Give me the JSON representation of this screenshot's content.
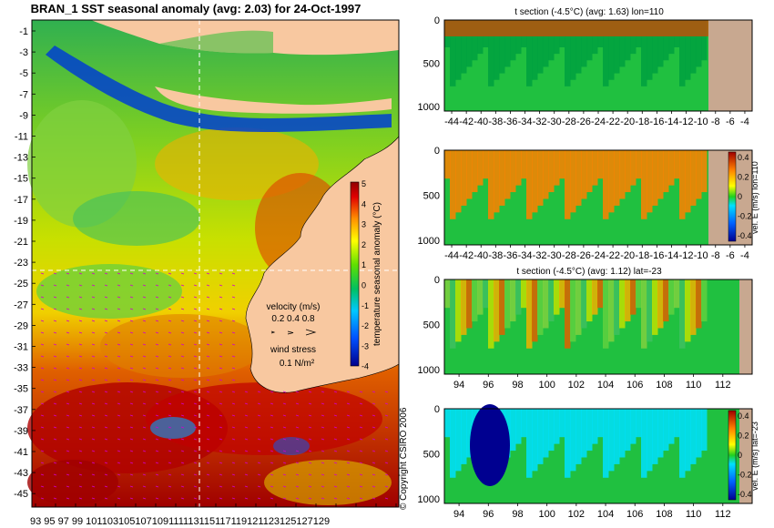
{
  "main_map": {
    "title": "BRAN_1  SST seasonal anomaly  (avg: 2.03) for 24-Oct-1997",
    "lat_ticks": [
      -1,
      -3,
      -5,
      -7,
      -9,
      -11,
      -13,
      -15,
      -17,
      -19,
      -21,
      -23,
      -25,
      -27,
      -29,
      -31,
      -33,
      -35,
      -37,
      -39,
      -41,
      -43,
      -45
    ],
    "lon_ticks": [
      93,
      95,
      97,
      99,
      101,
      103,
      105,
      107,
      109,
      111,
      113,
      115,
      117,
      119,
      121,
      123,
      125,
      127,
      129
    ],
    "lon_tick_labels": "93  95  97  99 101103105107109111113115117119121123125127129",
    "colorbar_label": "temperature seasonal anomaly (°C)",
    "colorbar_ticks": [
      5,
      4,
      3,
      2,
      1,
      0,
      -1,
      -2,
      -3,
      -4
    ],
    "velocity_label": "velocity (m/s)",
    "velocity_scale": "0.2 0.4 0.8",
    "wind_label": "wind stress",
    "wind_scale": "0.1 N/m²",
    "copyright": "© Copyright CSIRO 2006"
  },
  "panels": [
    {
      "id": "p1",
      "title": "t section (-4.5°C) (avg: 1.63) lon=110",
      "y_ticks": [
        0,
        500,
        1000
      ],
      "x_labels": "-44424038363432302826242220181614121086-4",
      "x_ticks": [
        -44,
        -42,
        -40,
        -38,
        -36,
        -34,
        -32,
        -30,
        -28,
        -26,
        -24,
        -22,
        -20,
        -18,
        -16,
        -14,
        -12,
        -10,
        -8,
        -6,
        -4
      ],
      "colorbar": false
    },
    {
      "id": "p2",
      "title": "",
      "y_ticks": [
        0,
        500,
        1000
      ],
      "x_ticks": [
        -44,
        -42,
        -40,
        -38,
        -36,
        -34,
        -32,
        -30,
        -28,
        -26,
        -24,
        -22,
        -20,
        -18,
        -16,
        -14,
        -12,
        -10,
        -8,
        -6,
        -4
      ],
      "colorbar": true,
      "colorbar_label": "vel. E (m/s) lon=110",
      "colorbar_ticks": [
        "0.4",
        "0.2",
        "0",
        "-0.2",
        "-0.4"
      ]
    },
    {
      "id": "p3",
      "title": "t section (-4.5°C) (avg: 1.12) lat=-23",
      "y_ticks": [
        0,
        500,
        1000
      ],
      "x_ticks": [
        94,
        96,
        98,
        100,
        102,
        104,
        106,
        108,
        110,
        112
      ],
      "colorbar": false
    },
    {
      "id": "p4",
      "title": "",
      "y_ticks": [
        0,
        500,
        1000
      ],
      "x_ticks": [
        94,
        96,
        98,
        100,
        102,
        104,
        106,
        108,
        110,
        112
      ],
      "colorbar": true,
      "colorbar_label": "vel. E (m/s) lat=-23",
      "colorbar_ticks": [
        "0.4",
        "0.2",
        "0",
        "-0.2",
        "-0.4"
      ]
    }
  ],
  "chart_data": [
    {
      "type": "heatmap",
      "title": "BRAN_1  SST seasonal anomaly  (avg: 2.03) for 24-Oct-1997",
      "xlim": [
        93,
        130
      ],
      "ylim": [
        -45,
        0
      ],
      "zlim": [
        -4,
        5
      ],
      "colorbar_label": "temperature seasonal anomaly (°C)",
      "grid": false
    },
    {
      "type": "heatmap",
      "title": "t section (-4.5°C) (avg: 1.63) lon=110",
      "xlim": [
        -45,
        -3
      ],
      "ylim": [
        1050,
        0
      ]
    },
    {
      "type": "heatmap",
      "title": "",
      "xlim": [
        -45,
        -3
      ],
      "ylim": [
        1050,
        0
      ],
      "zlim": [
        -0.4,
        0.4
      ],
      "colorbar_label": "vel. E (m/s) lon=110"
    },
    {
      "type": "heatmap",
      "title": "t section (-4.5°C) (avg: 1.12) lat=-23",
      "xlim": [
        93,
        114
      ],
      "ylim": [
        1050,
        0
      ]
    },
    {
      "type": "heatmap",
      "title": "",
      "xlim": [
        93,
        114
      ],
      "ylim": [
        1050,
        0
      ],
      "zlim": [
        -0.4,
        0.4
      ],
      "colorbar_label": "vel. E (m/s) lat=-23"
    }
  ],
  "colors": {
    "land": "#f8c8a0",
    "deep_blue": "#0000a0",
    "dark_red": "#a00000",
    "section_land": "#c8a890",
    "vector": "#d000d0"
  }
}
